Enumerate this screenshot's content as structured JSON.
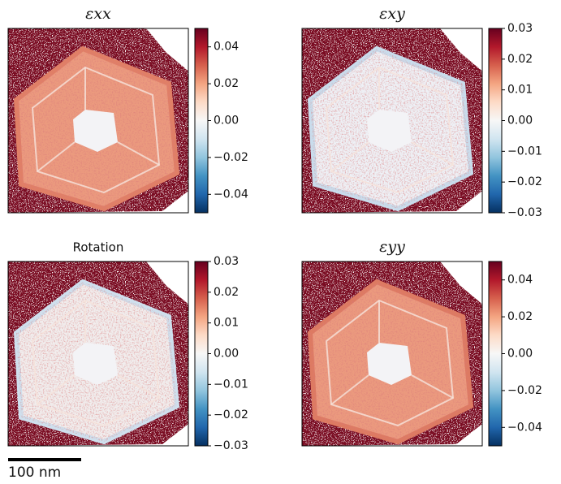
{
  "chart_data": [
    {
      "type": "heatmap",
      "title": "εxx",
      "clim": [
        -0.05,
        0.05
      ],
      "cticks": [
        {
          "value": -0.04,
          "label": "−0.04"
        },
        {
          "value": -0.02,
          "label": "−0.02"
        },
        {
          "value": 0,
          "label": "0.00"
        },
        0.02,
        0.04
      ]
    },
    {
      "type": "heatmap",
      "title": "εxy",
      "clim": [
        -0.03,
        0.03
      ],
      "cticks": [
        {
          "value": -0.03,
          "label": "−0.03"
        },
        {
          "value": -0.02,
          "label": "−0.02"
        },
        {
          "value": -0.01,
          "label": "−0.01"
        },
        {
          "value": 0,
          "label": "0.00"
        },
        0.01,
        0.02,
        0.03
      ]
    },
    {
      "type": "heatmap",
      "title": "Rotation",
      "clim": [
        -0.03,
        0.03
      ],
      "cticks": [
        {
          "value": -0.03,
          "label": "−0.03"
        },
        {
          "value": -0.02,
          "label": "−0.02"
        },
        {
          "value": -0.01,
          "label": "−0.01"
        },
        {
          "value": 0,
          "label": "0.00"
        },
        0.01,
        0.02,
        0.03
      ]
    },
    {
      "type": "heatmap",
      "title": "εyy",
      "clim": [
        -0.05,
        0.05
      ],
      "cticks": [
        {
          "value": -0.04,
          "label": "−0.04"
        },
        {
          "value": -0.02,
          "label": "−0.02"
        },
        {
          "value": 0,
          "label": "0.00"
        },
        0.02,
        0.04
      ]
    }
  ],
  "scale_bar": "100 nm"
}
